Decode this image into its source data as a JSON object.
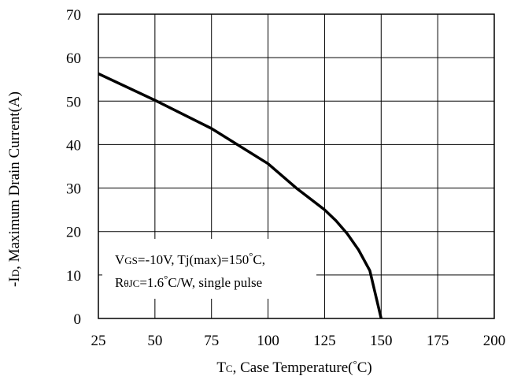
{
  "chart_data": {
    "type": "line",
    "xlabel": {
      "main": "T",
      "sub": "C",
      "rest": ", Case Temperature(",
      "deg": "°",
      "end": "C)"
    },
    "ylabel": {
      "pre": "-I",
      "sub": "D",
      "rest": ", Maximum Drain Current(A)"
    },
    "xlim": [
      25,
      200
    ],
    "ylim": [
      0,
      70
    ],
    "xticks": [
      25,
      50,
      75,
      100,
      125,
      150,
      175,
      200
    ],
    "yticks": [
      0,
      10,
      20,
      30,
      40,
      50,
      60,
      70
    ],
    "grid": true,
    "series": [
      {
        "x": [
          25,
          50,
          75,
          100,
          112.5,
          125,
          130,
          135,
          140,
          145,
          150
        ],
        "y": [
          56.3,
          50.2,
          43.7,
          35.6,
          30.0,
          25.0,
          22.5,
          19.5,
          15.8,
          11.0,
          0
        ]
      }
    ],
    "annotation": {
      "line1": {
        "a": "V",
        "b": "GS",
        "c": "=-10V, Tj(max)=150",
        "d": "°",
        "e": "C,"
      },
      "line2": {
        "a": "R",
        "b": "θJC",
        "c": "=1.6",
        "d": "°",
        "e": "C/W, single pulse"
      }
    }
  }
}
